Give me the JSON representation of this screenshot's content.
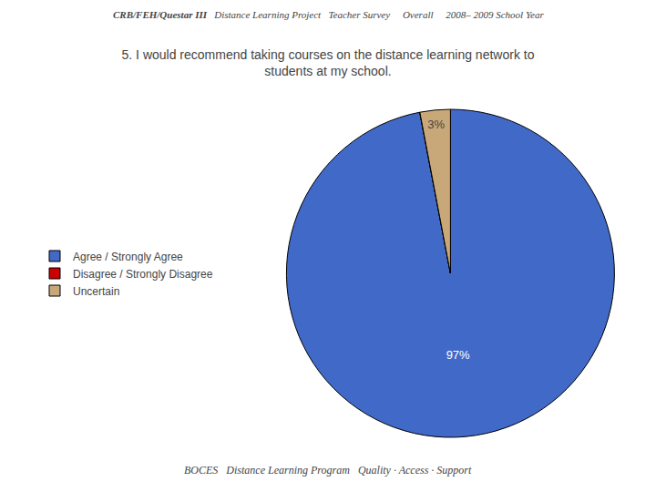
{
  "chart_data": {
    "type": "pie",
    "title": "5. I would recommend taking courses on the distance learning network to",
    "subtitle": "students at my school.",
    "annotations": [
      "CRB/FEH/Questar III",
      "Distance Learning Project   Teacher Survey     Overall     2008– 2009 School Year",
      "BOCES",
      "Distance Learning Program",
      "Quality · Access · Support"
    ],
    "categories": [
      "Agree / Strongly Agree",
      "Disagree / Strongly Disagree",
      "Uncertain"
    ],
    "values": [
      97,
      0.01,
      2.99
    ],
    "value_labels": [
      "97%",
      null,
      "3%"
    ],
    "data_labels": true,
    "colors": [
      "#4169C8",
      "#CC0000",
      "#C8A878"
    ],
    "legend": "left"
  }
}
